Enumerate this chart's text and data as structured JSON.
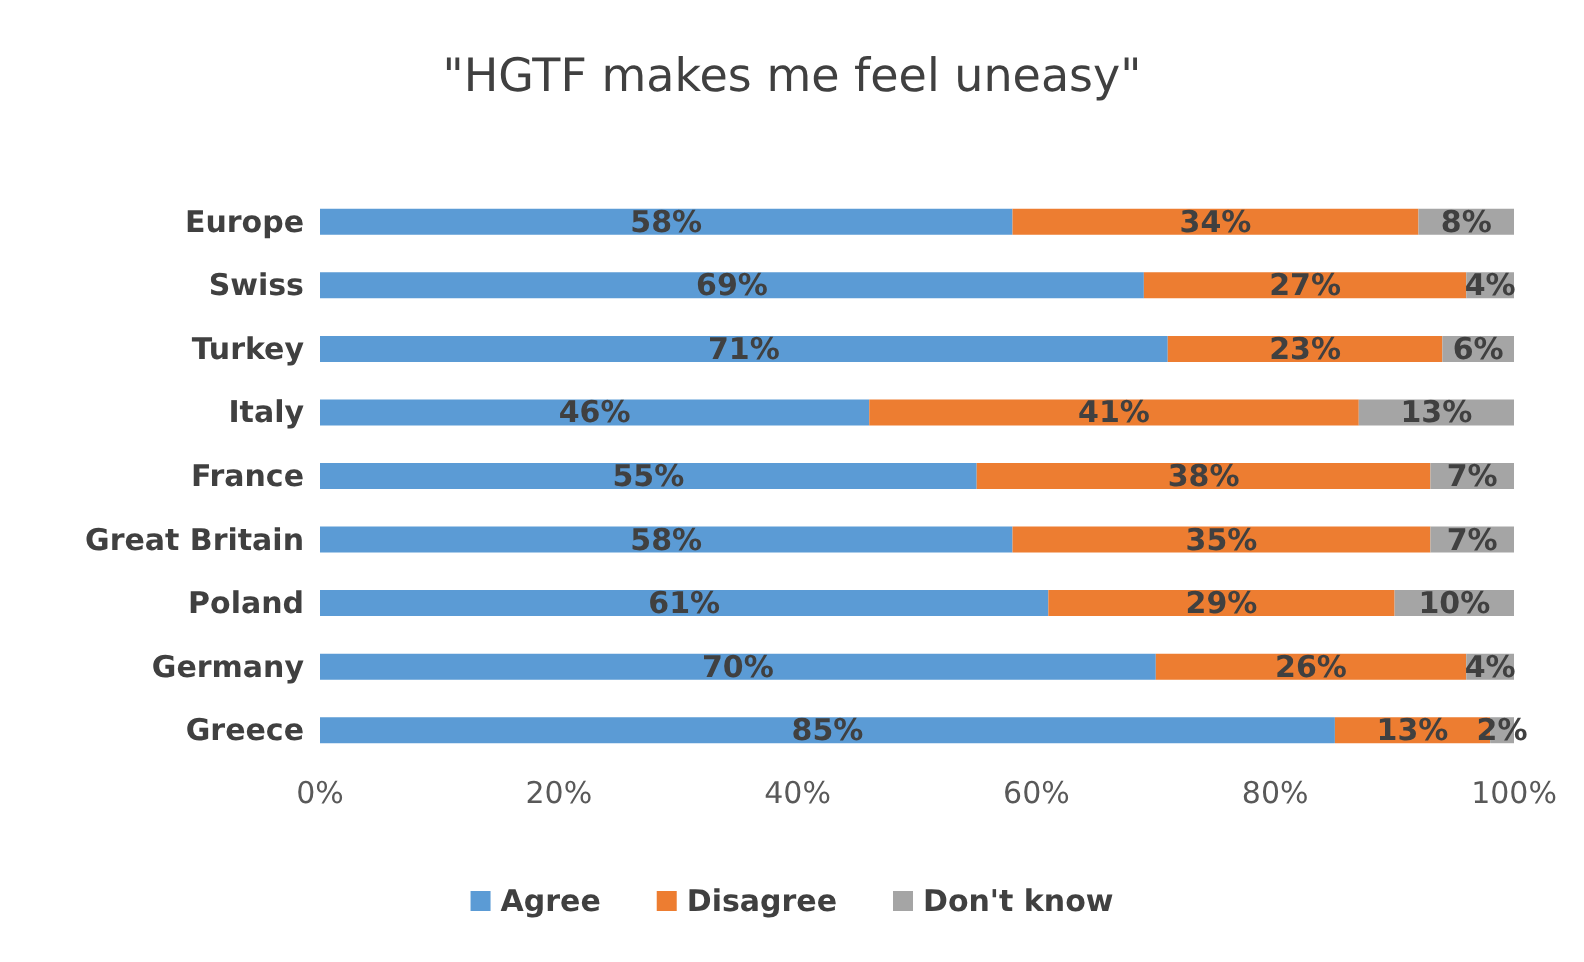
{
  "chart_data": {
    "type": "bar",
    "orientation": "horizontal",
    "stacked": true,
    "title": "\"HGTF makes me feel uneasy\"",
    "categories": [
      "Europe",
      "Swiss",
      "Turkey",
      "Italy",
      "France",
      "Great Britain",
      "Poland",
      "Germany",
      "Greece"
    ],
    "series": [
      {
        "name": "Agree",
        "color": "#5b9bd5",
        "values": [
          58,
          69,
          71,
          46,
          55,
          58,
          61,
          70,
          85
        ],
        "value_labels": [
          "58%",
          "69%",
          "71%",
          "46%",
          "55%",
          "58%",
          "61%",
          "70%",
          "85%"
        ]
      },
      {
        "name": "Disagree",
        "color": "#ed7d31",
        "values": [
          34,
          27,
          23,
          41,
          38,
          35,
          29,
          26,
          13
        ],
        "value_labels": [
          "34%",
          "27%",
          "23%",
          "41%",
          "38%",
          "35%",
          "29%",
          "26%",
          "13%"
        ]
      },
      {
        "name": "Don't know",
        "color": "#a5a5a5",
        "values": [
          8,
          4,
          6,
          13,
          7,
          7,
          10,
          4,
          2
        ],
        "value_labels": [
          "8%",
          "4%",
          "6%",
          "13%",
          "7%",
          "7%",
          "10%",
          "4%",
          "2%"
        ]
      }
    ],
    "xlim": [
      0,
      100
    ],
    "xticks": [
      {
        "value": 0,
        "label": "0%"
      },
      {
        "value": 20,
        "label": "20%"
      },
      {
        "value": 40,
        "label": "40%"
      },
      {
        "value": 60,
        "label": "60%"
      },
      {
        "value": 80,
        "label": "80%"
      },
      {
        "value": 100,
        "label": "100%"
      }
    ],
    "grid": false,
    "legend": "bottom"
  }
}
